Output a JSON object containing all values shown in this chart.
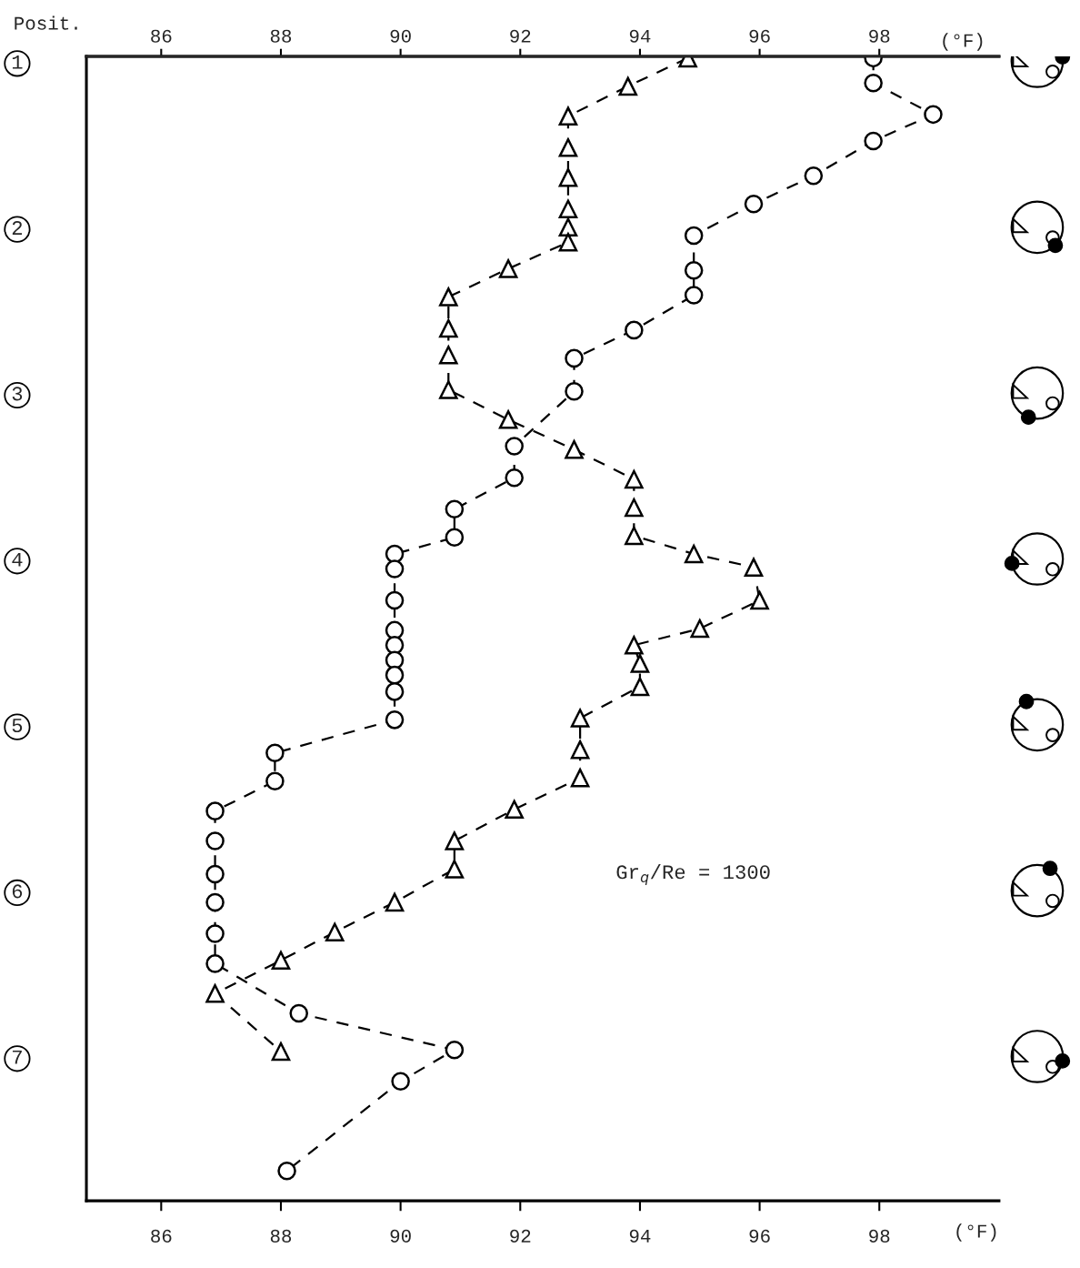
{
  "chart_data": {
    "type": "line",
    "ylabel": "Posit.",
    "xlabel": "(°F)",
    "x2label": "(°F)",
    "xlim": [
      84.75,
      100.0
    ],
    "xticks": [
      86,
      88,
      90,
      92,
      94,
      96,
      98
    ],
    "x2lim": [
      84.75,
      100.0
    ],
    "x2ticks": [
      86,
      88,
      90,
      92,
      94,
      96,
      98
    ],
    "ylim": [
      7.87,
      0.97
    ],
    "yticks": [
      1,
      2,
      3,
      4,
      5,
      6,
      7
    ],
    "grid": false,
    "line_style": "dashed",
    "annotations": [
      {
        "text": "Gr$_{q}$/Re = 1300"
      }
    ],
    "series": [
      {
        "color": "#000000",
        "marker": "triangle",
        "x": [
          94.8,
          93.8,
          92.8,
          92.8,
          92.8,
          92.8,
          92.8,
          92.8,
          91.8,
          90.8,
          90.8,
          90.8,
          90.8,
          91.8,
          92.9,
          93.9,
          93.9,
          93.9,
          94.9,
          95.9,
          96.0,
          95.0,
          93.9,
          94.0,
          94.0,
          93.0,
          93.0,
          93.0,
          91.9,
          90.9,
          90.9,
          89.9,
          88.9,
          88.0,
          86.9,
          88.0
        ],
        "values": [
          0.98,
          1.15,
          1.33,
          1.52,
          1.7,
          1.89,
          2.0,
          2.09,
          2.25,
          2.42,
          2.61,
          2.77,
          2.98,
          3.16,
          3.34,
          3.52,
          3.69,
          3.86,
          3.97,
          4.05,
          4.25,
          4.42,
          4.52,
          4.63,
          4.77,
          4.96,
          5.15,
          5.32,
          5.51,
          5.7,
          5.87,
          6.07,
          6.25,
          6.42,
          6.62,
          6.97
        ]
      },
      {
        "color": "#000000",
        "marker": "circle",
        "x": [
          97.9,
          97.9,
          98.9,
          97.9,
          96.9,
          95.9,
          94.9,
          94.9,
          94.9,
          93.9,
          92.9,
          92.9,
          91.9,
          91.9,
          90.9,
          90.9,
          89.9,
          89.9,
          89.9,
          89.9,
          89.9,
          89.9,
          89.9,
          89.9,
          89.9,
          87.9,
          87.9,
          86.9,
          86.9,
          86.9,
          86.9,
          86.9,
          86.9,
          88.3,
          90.9,
          90.0,
          88.1
        ],
        "values": [
          0.98,
          1.13,
          1.32,
          1.48,
          1.69,
          1.86,
          2.05,
          2.26,
          2.41,
          2.62,
          2.79,
          2.99,
          3.32,
          3.51,
          3.7,
          3.87,
          3.97,
          4.06,
          4.25,
          4.43,
          4.52,
          4.61,
          4.7,
          4.8,
          4.97,
          5.17,
          5.34,
          5.52,
          5.7,
          5.9,
          6.07,
          6.26,
          6.44,
          6.74,
          6.96,
          7.15,
          7.69
        ]
      }
    ]
  }
}
